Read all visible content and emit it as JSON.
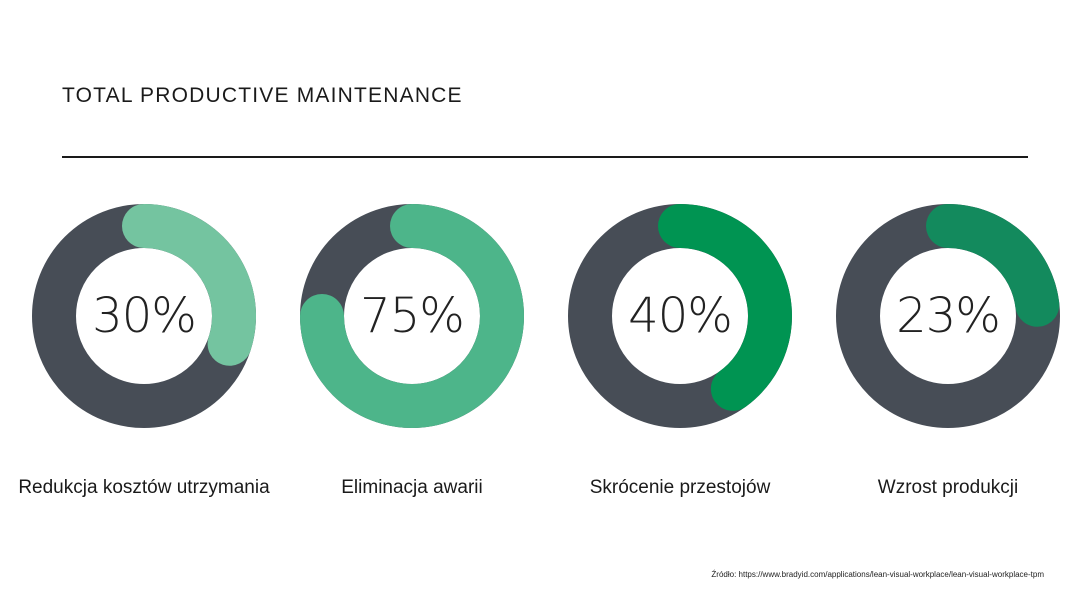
{
  "title": "TOTAL PRODUCTIVE MAINTENANCE",
  "chart_data": {
    "type": "donut",
    "items": [
      {
        "label": "Redukcja kosztów utrzymania",
        "value": 30,
        "value_text": "30%",
        "color": "#74c4a0"
      },
      {
        "label": "Eliminacja awarii",
        "value": 75,
        "value_text": "75%",
        "color": "#4db58a"
      },
      {
        "label": "Skrócenie przestojów",
        "value": 40,
        "value_text": "40%",
        "color": "#009452"
      },
      {
        "label": "Wzrost produkcji",
        "value": 23,
        "value_text": "23%",
        "color": "#138a5d"
      }
    ],
    "track_color": "#474d56"
  },
  "source": "Źródło: https://www.bradyid.com/applications/lean-visual-workplace/lean-visual-workplace-tpm"
}
